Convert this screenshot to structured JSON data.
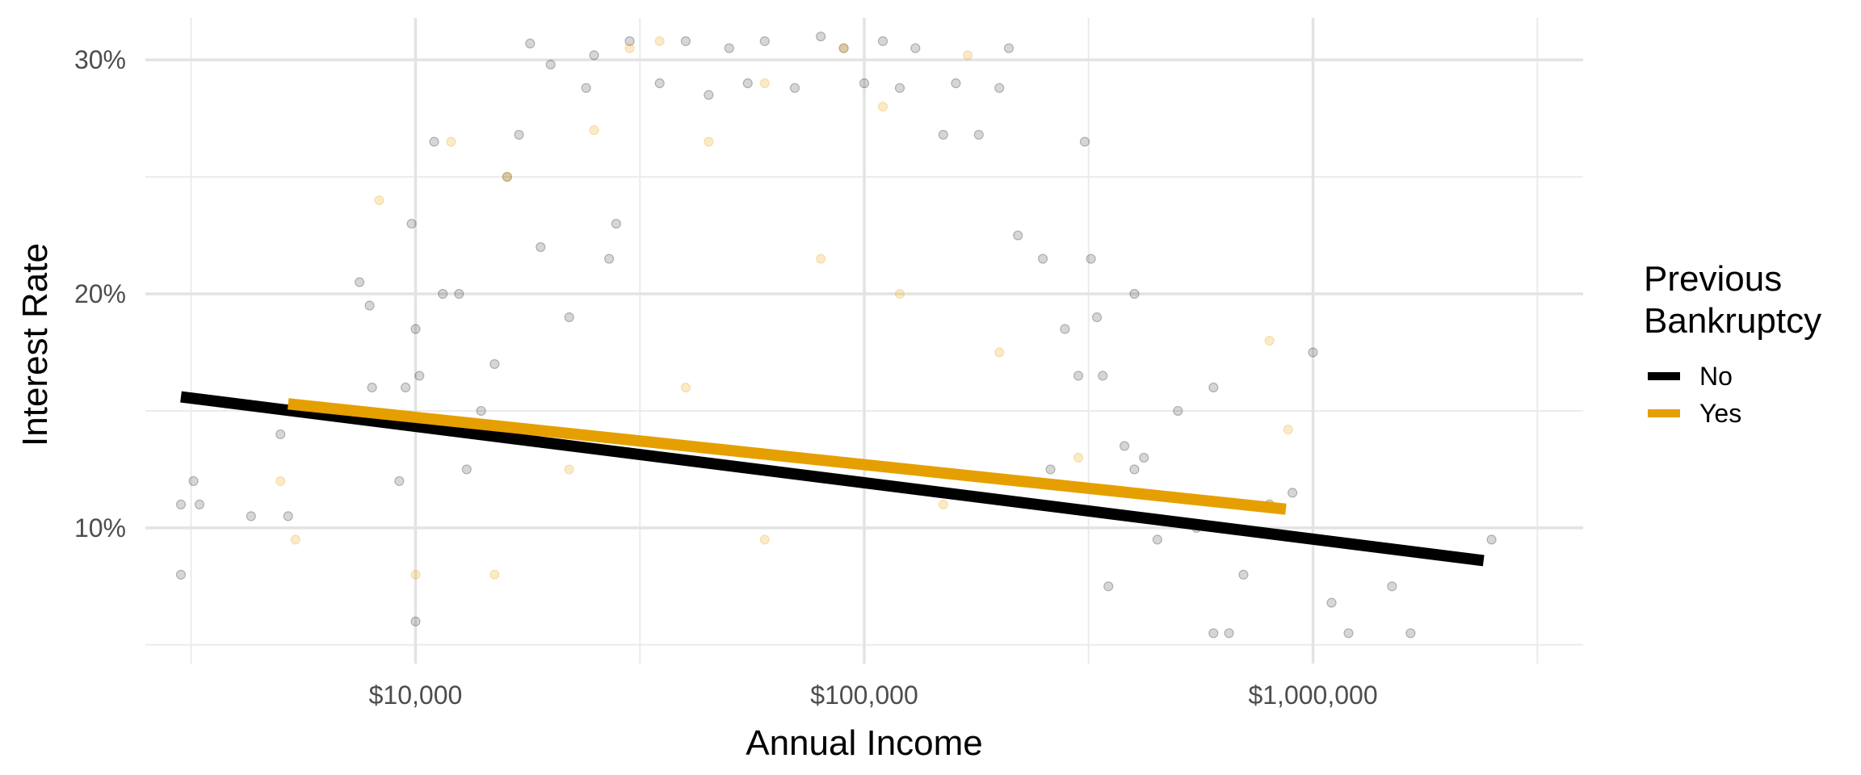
{
  "chart_data": {
    "type": "scatter",
    "xlabel": "Annual Income",
    "ylabel": "Interest Rate",
    "x_scale": "log10",
    "xlim": [
      2500,
      4000000
    ],
    "ylim": [
      4.2,
      31.8
    ],
    "x_ticks": [
      {
        "value": 10000,
        "label": "$10,000"
      },
      {
        "value": 100000,
        "label": "$100,000"
      },
      {
        "value": 1000000,
        "label": "$1,000,000"
      }
    ],
    "y_ticks": [
      {
        "value": 10,
        "label": "10%"
      },
      {
        "value": 20,
        "label": "20%"
      },
      {
        "value": 30,
        "label": "30%"
      }
    ],
    "x_minor_gridlines": [
      3162,
      31623,
      316228,
      3162278
    ],
    "y_minor_gridlines": [
      5,
      15,
      25
    ],
    "grid": true,
    "legend": {
      "title_lines": [
        "Previous",
        "Bankruptcy"
      ],
      "placement": "right",
      "entries": [
        {
          "label": "No",
          "color": "#000000"
        },
        {
          "label": "Yes",
          "color": "#E69F00"
        }
      ]
    },
    "series": [
      {
        "name": "No",
        "color": "#000000",
        "fit_line": {
          "x": [
            3000,
            2400000
          ],
          "y": [
            15.6,
            8.6
          ]
        },
        "points_note": "thousands of semi-transparent points; representative sample",
        "points": [
          [
            3000,
            11.0
          ],
          [
            3000,
            8.0
          ],
          [
            3200,
            12.0
          ],
          [
            3300,
            11.0
          ],
          [
            4300,
            10.5
          ],
          [
            5000,
            14.0
          ],
          [
            5200,
            10.5
          ],
          [
            7500,
            20.5
          ],
          [
            7900,
            19.5
          ],
          [
            8000,
            16.0
          ],
          [
            9200,
            12.0
          ],
          [
            9500,
            16.0
          ],
          [
            9800,
            23.0
          ],
          [
            10000,
            18.5
          ],
          [
            10000,
            6.0
          ],
          [
            10200,
            16.5
          ],
          [
            11000,
            26.5
          ],
          [
            11500,
            20.0
          ],
          [
            12500,
            20.0
          ],
          [
            13000,
            12.5
          ],
          [
            14000,
            15.0
          ],
          [
            15000,
            17.0
          ],
          [
            16000,
            25.0
          ],
          [
            17000,
            26.8
          ],
          [
            18000,
            30.7
          ],
          [
            19000,
            22.0
          ],
          [
            20000,
            29.8
          ],
          [
            22000,
            19.0
          ],
          [
            24000,
            28.8
          ],
          [
            25000,
            30.2
          ],
          [
            27000,
            21.5
          ],
          [
            28000,
            23.0
          ],
          [
            30000,
            30.8
          ],
          [
            35000,
            29.0
          ],
          [
            40000,
            30.8
          ],
          [
            45000,
            28.5
          ],
          [
            50000,
            30.5
          ],
          [
            55000,
            29.0
          ],
          [
            60000,
            30.8
          ],
          [
            70000,
            28.8
          ],
          [
            80000,
            31.0
          ],
          [
            90000,
            30.5
          ],
          [
            100000,
            29.0
          ],
          [
            110000,
            30.8
          ],
          [
            120000,
            28.8
          ],
          [
            130000,
            30.5
          ],
          [
            150000,
            26.8
          ],
          [
            160000,
            29.0
          ],
          [
            180000,
            26.8
          ],
          [
            200000,
            28.8
          ],
          [
            210000,
            30.5
          ],
          [
            220000,
            22.5
          ],
          [
            250000,
            21.5
          ],
          [
            280000,
            18.5
          ],
          [
            300000,
            16.5
          ],
          [
            310000,
            26.5
          ],
          [
            320000,
            21.5
          ],
          [
            330000,
            19.0
          ],
          [
            340000,
            16.5
          ],
          [
            400000,
            20.0
          ],
          [
            420000,
            13.0
          ],
          [
            500000,
            15.0
          ],
          [
            550000,
            10.0
          ],
          [
            600000,
            16.0
          ],
          [
            650000,
            5.5
          ],
          [
            700000,
            8.0
          ],
          [
            800000,
            11.0
          ],
          [
            900000,
            11.5
          ],
          [
            1000000,
            17.5
          ],
          [
            1100000,
            6.8
          ],
          [
            1200000,
            5.5
          ],
          [
            1500000,
            7.5
          ],
          [
            2500000,
            9.5
          ],
          [
            1650000,
            5.5
          ],
          [
            600000,
            5.5
          ],
          [
            400000,
            12.5
          ],
          [
            350000,
            7.5
          ],
          [
            450000,
            9.5
          ],
          [
            380000,
            13.5
          ],
          [
            260000,
            12.5
          ]
        ]
      },
      {
        "name": "Yes",
        "color": "#E69F00",
        "fit_line": {
          "x": [
            5200,
            870000
          ],
          "y": [
            15.3,
            10.8
          ]
        },
        "points": [
          [
            5000,
            12.0
          ],
          [
            5400,
            9.5
          ],
          [
            8300,
            24.0
          ],
          [
            12000,
            26.5
          ],
          [
            16000,
            25.0
          ],
          [
            25000,
            27.0
          ],
          [
            30000,
            30.5
          ],
          [
            35000,
            30.8
          ],
          [
            45000,
            26.5
          ],
          [
            60000,
            29.0
          ],
          [
            90000,
            30.5
          ],
          [
            110000,
            28.0
          ],
          [
            170000,
            30.2
          ],
          [
            120000,
            20.0
          ],
          [
            80000,
            21.5
          ],
          [
            40000,
            16.0
          ],
          [
            22000,
            12.5
          ],
          [
            15000,
            8.0
          ],
          [
            10000,
            8.0
          ],
          [
            800000,
            18.0
          ],
          [
            880000,
            14.2
          ],
          [
            200000,
            17.5
          ],
          [
            300000,
            13.0
          ],
          [
            150000,
            11.0
          ],
          [
            60000,
            9.5
          ]
        ]
      }
    ]
  }
}
